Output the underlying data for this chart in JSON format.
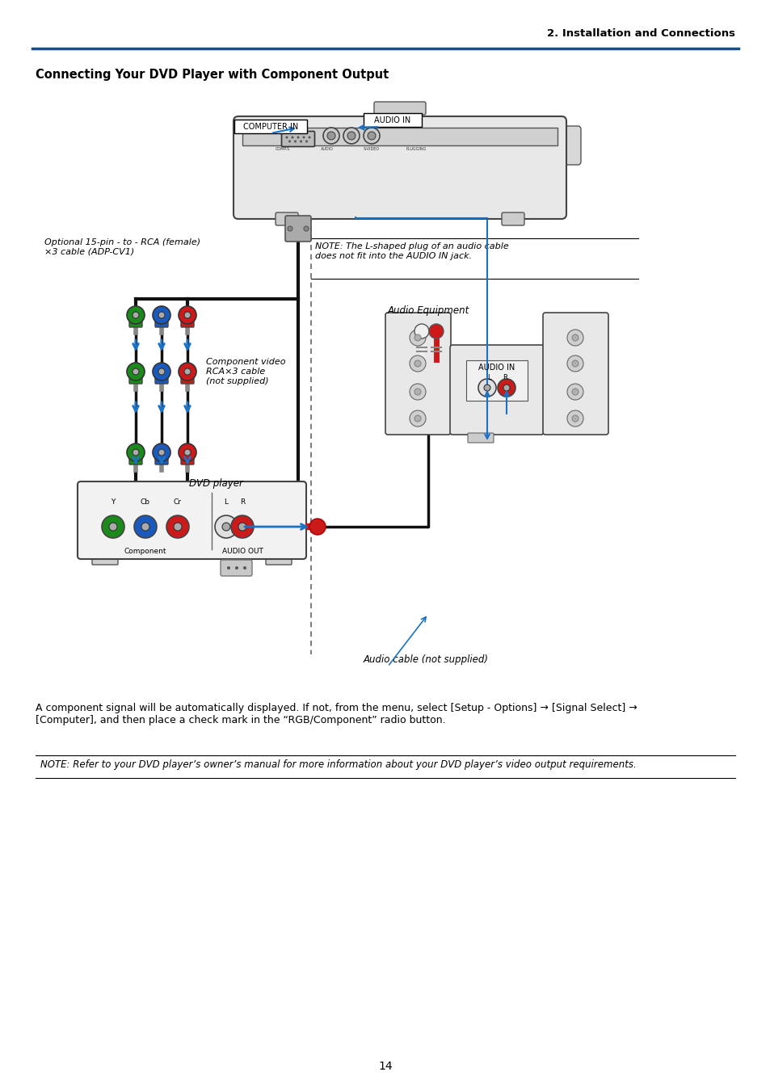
{
  "page_header_right": "2. Installation and Connections",
  "page_title": "Connecting Your DVD Player with Component Output",
  "body_text": "A component signal will be automatically displayed. If not, from the menu, select [Setup - Options] → [Signal Select] →\n[Computer], and then place a check mark in the “RGB/Component” radio button.",
  "note_text": "NOTE: Refer to your DVD player’s owner’s manual for more information about your DVD player’s video output requirements.",
  "label_computer_in": "COMPUTER IN",
  "label_audio_in_box": "AUDIO IN",
  "label_optional_cable": "Optional 15-pin - to - RCA (female)\n×3 cable (ADP-CV1)",
  "label_component_video": "Component video\nRCA×3 cable\n(not supplied)",
  "label_dvd_player": "DVD player",
  "label_audio_equipment": "Audio Equipment",
  "label_audio_cable": "Audio cable (not supplied)",
  "label_note_audio": "NOTE: The L-shaped plug of an audio cable\ndoes not fit into the AUDIO IN jack.",
  "label_audio_in_lr": "AUDIO IN",
  "label_l": "L",
  "label_r": "R",
  "label_y": "Y",
  "label_cb": "Cb",
  "label_cr": "Cr",
  "label_component": "Component",
  "label_audio_out": "AUDIO OUT",
  "page_number": "14",
  "bg_color": "#ffffff",
  "header_line_color": "#1a4f8a",
  "text_color": "#000000",
  "blue_arrow_color": "#1a72c4",
  "cable_color": "#111111"
}
